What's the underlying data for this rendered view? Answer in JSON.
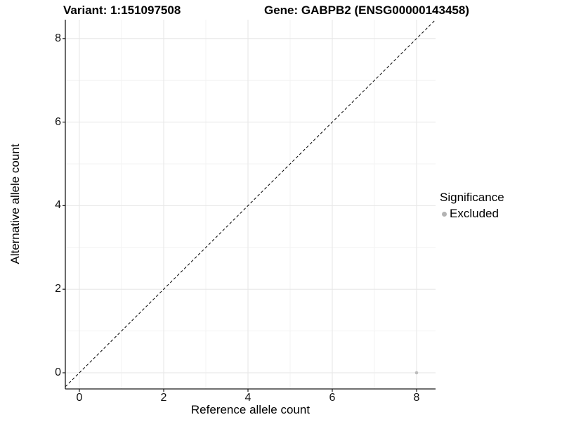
{
  "title": {
    "variant": "Variant: 1:151097508",
    "gene": "Gene: GABPB2 (ENSG00000143458)"
  },
  "axes": {
    "x": {
      "label": "Reference allele count",
      "tick_values": [
        0,
        2,
        4,
        6,
        8
      ],
      "tick_labels": [
        "0",
        "2",
        "4",
        "6",
        "8"
      ],
      "minor_ticks": [
        1,
        3,
        5,
        7
      ]
    },
    "y": {
      "label": "Alternative allele count",
      "tick_values": [
        0,
        2,
        4,
        6,
        8
      ],
      "tick_labels": [
        "0",
        "2",
        "4",
        "6",
        "8"
      ],
      "minor_ticks": [
        1,
        3,
        5,
        7
      ]
    }
  },
  "legend": {
    "title": "Significance",
    "items": [
      {
        "label": "Excluded",
        "color": "#b3b3b3"
      }
    ]
  },
  "colors": {
    "background": "#ffffff",
    "grid_major": "#e6e6e6",
    "grid_minor": "#f3f3f3",
    "axis_line": "#1a1a1a",
    "tick_mark": "#1a1a1a",
    "reference_line": "#000000",
    "point": "#bdbdbd"
  },
  "chart_data": {
    "type": "scatter",
    "title": "Variant: 1:151097508    Gene: GABPB2 (ENSG00000143458)",
    "xlabel": "Reference allele count",
    "ylabel": "Alternative allele count",
    "xlim": [
      -0.4,
      8.45
    ],
    "ylim": [
      -0.4,
      8.45
    ],
    "x_ticks": [
      0,
      2,
      4,
      6,
      8
    ],
    "y_ticks": [
      0,
      2,
      4,
      6,
      8
    ],
    "grid": true,
    "legend_position": "right",
    "series": [
      {
        "name": "Excluded",
        "color": "#bdbdbd",
        "points": [
          {
            "x": 8,
            "y": 0
          }
        ]
      }
    ],
    "reference_line": {
      "kind": "identity y=x",
      "style": "dashed",
      "color": "#000000"
    }
  }
}
